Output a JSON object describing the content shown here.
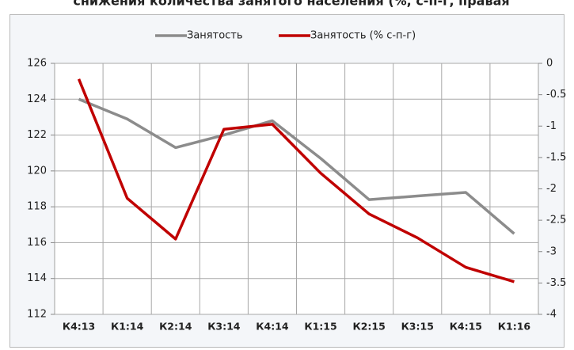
{
  "chart_data": {
    "type": "line",
    "title": "снижения количества занятого населения (%, с-п-г, правая",
    "categories": [
      "К4:13",
      "К1:14",
      "К2:14",
      "К3:14",
      "К4:14",
      "К1:15",
      "К2:15",
      "К3:15",
      "К4:15",
      "К1:16"
    ],
    "series": [
      {
        "name": "Занятость",
        "color": "#8c8c8c",
        "values": [
          124.0,
          122.9,
          121.3,
          122.0,
          122.8,
          120.7,
          118.4,
          118.6,
          118.8,
          116.5
        ]
      },
      {
        "name": "Занятость (% с-п-г)",
        "color": "#c00000",
        "axis": "y2",
        "values": [
          -0.25,
          -2.15,
          -2.8,
          -1.05,
          -0.97,
          -1.75,
          -2.4,
          -2.78,
          -3.25,
          -3.48
        ]
      }
    ],
    "ylim": [
      112,
      126
    ],
    "yticks": [
      112,
      114,
      116,
      118,
      120,
      122,
      124,
      126
    ],
    "y2lim": [
      -4,
      0
    ],
    "y2ticks": [
      -4,
      -3.5,
      -3,
      -2.5,
      -2,
      -1.5,
      -1,
      -0.5,
      0
    ],
    "grid": true,
    "legend": "top"
  }
}
